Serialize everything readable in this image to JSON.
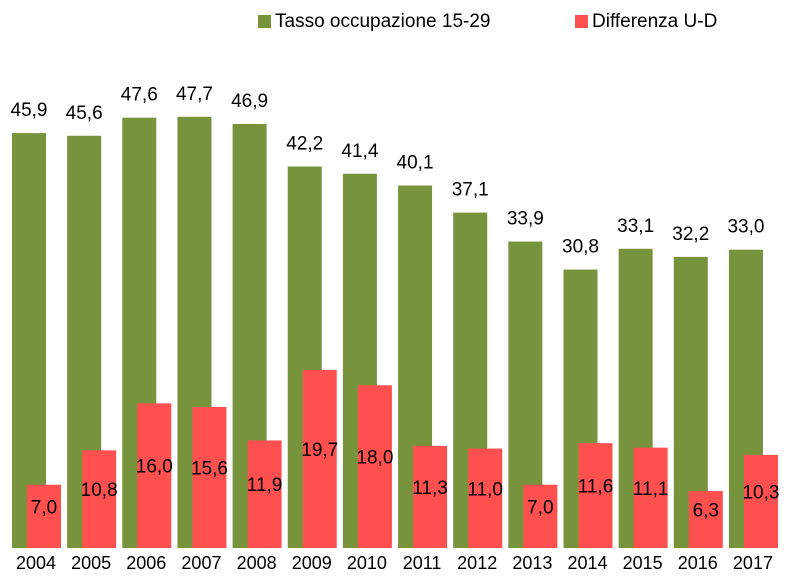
{
  "chart_data": {
    "type": "bar",
    "categories": [
      "2004",
      "2005",
      "2006",
      "2007",
      "2008",
      "2009",
      "2010",
      "2011",
      "2012",
      "2013",
      "2014",
      "2015",
      "2016",
      "2017"
    ],
    "series": [
      {
        "name": "Tasso occupazione 15-29",
        "color": "#77933c",
        "values": [
          45.9,
          45.6,
          47.6,
          47.7,
          46.9,
          42.2,
          41.4,
          40.1,
          37.1,
          33.9,
          30.8,
          33.1,
          32.2,
          33.0
        ],
        "value_labels": [
          "45,9",
          "45,6",
          "47,6",
          "47,7",
          "46,9",
          "42,2",
          "41,4",
          "40,1",
          "37,1",
          "33,9",
          "30,8",
          "33,1",
          "32,2",
          "33,0"
        ]
      },
      {
        "name": "Differenza U-D",
        "color": "#ff5050",
        "values": [
          7.0,
          10.8,
          16.0,
          15.6,
          11.9,
          19.7,
          18.0,
          11.3,
          11.0,
          7.0,
          11.6,
          11.1,
          6.3,
          10.3
        ],
        "value_labels": [
          "7,0",
          "10,8",
          "16,0",
          "15,6",
          "11,9",
          "19,7",
          "18,0",
          "11,3",
          "11,0",
          "7,0",
          "11,6",
          "11,1",
          "6,3",
          "10,3"
        ]
      }
    ],
    "ylim": [
      0,
      50
    ]
  }
}
